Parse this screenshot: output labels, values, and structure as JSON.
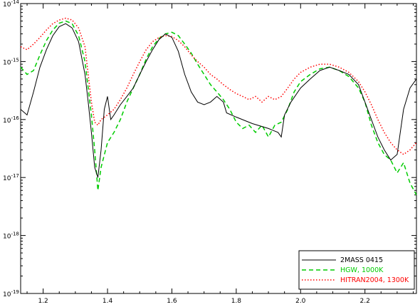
{
  "chart_data": {
    "type": "line",
    "title": "",
    "xlabel": "",
    "ylabel": "",
    "xlim": [
      1.13,
      2.36
    ],
    "ylim": [
      1e-19,
      1e-14
    ],
    "y_scale": "log",
    "grid": false,
    "legend_position": "bottom-right",
    "x_ticks": [
      {
        "value": 1.2,
        "label": "1.2"
      },
      {
        "value": 1.4,
        "label": "1.4"
      },
      {
        "value": 1.6,
        "label": "1.6"
      },
      {
        "value": 1.8,
        "label": "1.8"
      },
      {
        "value": 2.0,
        "label": "2.0"
      },
      {
        "value": 2.2,
        "label": "2.2"
      }
    ],
    "y_ticks": [
      {
        "value": 1e-14,
        "base": "10",
        "exp": "-14"
      },
      {
        "value": 1e-15,
        "base": "10",
        "exp": "-15"
      },
      {
        "value": 1e-16,
        "base": "10",
        "exp": "-16"
      },
      {
        "value": 1e-17,
        "base": "10",
        "exp": "-17"
      },
      {
        "value": 1e-18,
        "base": "10",
        "exp": "-18"
      },
      {
        "value": 1e-19,
        "base": "10",
        "exp": "-19"
      }
    ],
    "series": [
      {
        "name": "2MASS 0415",
        "color": "#000000",
        "style": "solid",
        "x": [
          1.13,
          1.15,
          1.17,
          1.19,
          1.21,
          1.23,
          1.25,
          1.27,
          1.29,
          1.31,
          1.33,
          1.34,
          1.35,
          1.36,
          1.37,
          1.38,
          1.39,
          1.4,
          1.41,
          1.42,
          1.44,
          1.46,
          1.48,
          1.5,
          1.52,
          1.54,
          1.56,
          1.58,
          1.6,
          1.62,
          1.64,
          1.66,
          1.68,
          1.7,
          1.72,
          1.74,
          1.76,
          1.77,
          1.8,
          1.85,
          1.9,
          1.93,
          1.94,
          1.95,
          1.97,
          2.0,
          2.03,
          2.06,
          2.09,
          2.12,
          2.15,
          2.18,
          2.2,
          2.22,
          2.24,
          2.26,
          2.28,
          2.3,
          2.32,
          2.34,
          2.36
        ],
        "y": [
          1.5e-16,
          1.2e-16,
          3e-16,
          8e-16,
          1.6e-15,
          2.8e-15,
          4e-15,
          4.5e-15,
          3.8e-15,
          2.2e-15,
          6e-16,
          2e-16,
          6e-17,
          1.5e-17,
          1e-17,
          3e-17,
          1.5e-16,
          2.5e-16,
          1e-16,
          1.2e-16,
          1.8e-16,
          2.5e-16,
          3.5e-16,
          6e-16,
          1e-15,
          1.6e-15,
          2.4e-15,
          3e-15,
          2.6e-15,
          1.5e-15,
          6e-16,
          3e-16,
          2e-16,
          1.8e-16,
          2e-16,
          2.5e-16,
          2e-16,
          1.3e-16,
          1.1e-16,
          8.5e-17,
          7e-17,
          6e-17,
          5e-17,
          1.2e-16,
          2e-16,
          3.5e-16,
          5e-16,
          7e-16,
          8e-16,
          7e-16,
          6e-16,
          4e-16,
          2e-16,
          1e-16,
          5e-17,
          3e-17,
          2e-17,
          2.5e-17,
          1.5e-16,
          3.5e-16,
          5e-16
        ]
      },
      {
        "name": "HGW, 1000K",
        "color": "#00cc00",
        "style": "dashed",
        "x": [
          1.13,
          1.15,
          1.17,
          1.19,
          1.21,
          1.23,
          1.25,
          1.27,
          1.29,
          1.31,
          1.33,
          1.35,
          1.36,
          1.37,
          1.38,
          1.4,
          1.42,
          1.44,
          1.46,
          1.48,
          1.5,
          1.52,
          1.54,
          1.56,
          1.58,
          1.6,
          1.62,
          1.64,
          1.66,
          1.68,
          1.7,
          1.72,
          1.74,
          1.76,
          1.78,
          1.8,
          1.82,
          1.84,
          1.86,
          1.88,
          1.9,
          1.92,
          1.94,
          1.96,
          1.98,
          2.0,
          2.03,
          2.06,
          2.09,
          2.12,
          2.15,
          2.18,
          2.2,
          2.22,
          2.24,
          2.26,
          2.28,
          2.3,
          2.32,
          2.34,
          2.36
        ],
        "y": [
          8e-16,
          6e-16,
          7e-16,
          1.3e-15,
          2.3e-15,
          3.5e-15,
          4.6e-15,
          5e-15,
          4.5e-15,
          2.8e-15,
          1e-15,
          1.2e-16,
          3e-17,
          6e-18,
          1.5e-17,
          4e-17,
          6e-17,
          1e-16,
          2e-16,
          3.5e-16,
          6e-16,
          1.1e-15,
          1.8e-15,
          2.5e-15,
          3e-15,
          3.2e-15,
          2.8e-15,
          2e-15,
          1.4e-15,
          9e-16,
          6e-16,
          4e-16,
          3e-16,
          2.2e-16,
          1.5e-16,
          9e-17,
          7e-17,
          8e-17,
          6e-17,
          8e-17,
          5e-17,
          8e-17,
          9e-17,
          1.5e-16,
          3e-16,
          4.5e-16,
          6e-16,
          7.5e-16,
          8e-16,
          7e-16,
          5.5e-16,
          3.5e-16,
          2e-16,
          8e-17,
          4e-17,
          2.5e-17,
          2e-17,
          1.2e-17,
          1.8e-17,
          8e-18,
          5e-18
        ]
      },
      {
        "name": "HITRAN2004, 1300K",
        "color": "#ff0000",
        "style": "dotted",
        "x": [
          1.13,
          1.15,
          1.17,
          1.19,
          1.21,
          1.23,
          1.25,
          1.27,
          1.29,
          1.31,
          1.33,
          1.34,
          1.35,
          1.36,
          1.37,
          1.38,
          1.4,
          1.42,
          1.44,
          1.46,
          1.48,
          1.5,
          1.52,
          1.54,
          1.56,
          1.58,
          1.6,
          1.62,
          1.64,
          1.66,
          1.68,
          1.7,
          1.72,
          1.74,
          1.76,
          1.78,
          1.8,
          1.82,
          1.84,
          1.86,
          1.88,
          1.9,
          1.92,
          1.94,
          1.96,
          1.98,
          2.0,
          2.03,
          2.06,
          2.09,
          2.12,
          2.15,
          2.18,
          2.2,
          2.22,
          2.24,
          2.26,
          2.28,
          2.3,
          2.32,
          2.34,
          2.36
        ],
        "y": [
          1.8e-15,
          1.6e-15,
          2e-15,
          2.6e-15,
          3.5e-15,
          4.5e-15,
          5.2e-15,
          5.6e-15,
          5.2e-15,
          3.8e-15,
          1.8e-15,
          6e-16,
          2e-16,
          9e-17,
          8e-17,
          1e-16,
          1.2e-16,
          1.5e-16,
          2.2e-16,
          3.5e-16,
          6e-16,
          1e-15,
          1.6e-15,
          2.2e-15,
          2.6e-15,
          2.8e-15,
          2.7e-15,
          2.3e-15,
          1.8e-15,
          1.3e-15,
          1e-15,
          8e-16,
          6e-16,
          5e-16,
          4e-16,
          3.3e-16,
          2.8e-16,
          2.5e-16,
          2.2e-16,
          2.5e-16,
          2e-16,
          2.5e-16,
          2.2e-16,
          2.5e-16,
          3.5e-16,
          5e-16,
          6.5e-16,
          8e-16,
          9e-16,
          9e-16,
          8e-16,
          6.5e-16,
          4.5e-16,
          3e-16,
          1.8e-16,
          1e-16,
          6e-17,
          4e-17,
          3e-17,
          2.5e-17,
          3e-17,
          4e-17
        ]
      }
    ],
    "legend": [
      {
        "label": "2MASS 0415",
        "color": "#000000",
        "style": "solid"
      },
      {
        "label": "HGW, 1000K",
        "color": "#00cc00",
        "style": "dashed"
      },
      {
        "label": "HITRAN2004, 1300K",
        "color": "#ff0000",
        "style": "dotted"
      }
    ]
  }
}
